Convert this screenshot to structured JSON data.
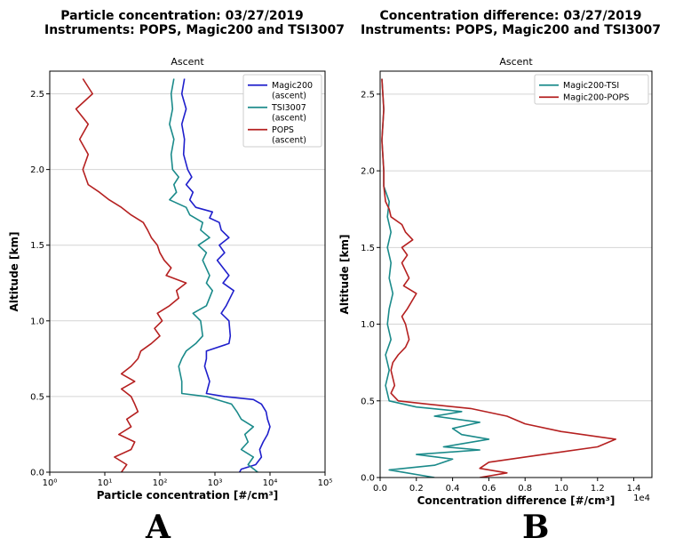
{
  "figure": {
    "panel_letters": [
      "A",
      "B"
    ]
  },
  "chart_data": [
    {
      "type": "line",
      "title_line1": "Particle concentration: 03/27/2019",
      "title_line2": "Instruments: POPS, Magic200 and TSI3007",
      "subtitle": "Ascent",
      "xlabel": "Particle concentration [#/cm³]",
      "ylabel": "Altitude [km]",
      "xscale": "log",
      "xlim": [
        1,
        100000
      ],
      "ylim": [
        0,
        2.65
      ],
      "xticks": [
        "10⁰",
        "10¹",
        "10²",
        "10³",
        "10⁴",
        "10⁵"
      ],
      "yticks": [
        "0.0",
        "0.5",
        "1.0",
        "1.5",
        "2.0",
        "2.5"
      ],
      "grid": "horizontal",
      "legend": "top-right",
      "series": [
        {
          "name": "Magic200\n(ascent)",
          "color": "#1f1fcc",
          "points": [
            [
              2800,
              0.0
            ],
            [
              3000,
              0.02
            ],
            [
              5500,
              0.05
            ],
            [
              7000,
              0.1
            ],
            [
              6500,
              0.15
            ],
            [
              7500,
              0.2
            ],
            [
              9000,
              0.25
            ],
            [
              10000,
              0.3
            ],
            [
              9000,
              0.35
            ],
            [
              8500,
              0.4
            ],
            [
              7000,
              0.45
            ],
            [
              5000,
              0.48
            ],
            [
              1500,
              0.5
            ],
            [
              700,
              0.52
            ],
            [
              800,
              0.6
            ],
            [
              650,
              0.7
            ],
            [
              700,
              0.75
            ],
            [
              700,
              0.8
            ],
            [
              1800,
              0.85
            ],
            [
              1900,
              0.9
            ],
            [
              1800,
              1.0
            ],
            [
              1300,
              1.05
            ],
            [
              1600,
              1.1
            ],
            [
              2200,
              1.2
            ],
            [
              1400,
              1.25
            ],
            [
              1800,
              1.3
            ],
            [
              1100,
              1.4
            ],
            [
              1500,
              1.45
            ],
            [
              1200,
              1.5
            ],
            [
              1800,
              1.55
            ],
            [
              1300,
              1.6
            ],
            [
              1200,
              1.65
            ],
            [
              800,
              1.68
            ],
            [
              900,
              1.72
            ],
            [
              450,
              1.75
            ],
            [
              350,
              1.8
            ],
            [
              400,
              1.85
            ],
            [
              300,
              1.9
            ],
            [
              380,
              1.95
            ],
            [
              320,
              2.0
            ],
            [
              270,
              2.1
            ],
            [
              280,
              2.2
            ],
            [
              250,
              2.3
            ],
            [
              300,
              2.4
            ],
            [
              250,
              2.5
            ],
            [
              280,
              2.6
            ]
          ]
        },
        {
          "name": "TSI3007\n(ascent)",
          "color": "#1a8a8a",
          "points": [
            [
              6000,
              0.0
            ],
            [
              4000,
              0.05
            ],
            [
              5000,
              0.1
            ],
            [
              3000,
              0.15
            ],
            [
              4000,
              0.2
            ],
            [
              3500,
              0.25
            ],
            [
              5000,
              0.3
            ],
            [
              3000,
              0.35
            ],
            [
              2500,
              0.4
            ],
            [
              2000,
              0.45
            ],
            [
              700,
              0.5
            ],
            [
              250,
              0.52
            ],
            [
              250,
              0.6
            ],
            [
              220,
              0.7
            ],
            [
              250,
              0.75
            ],
            [
              300,
              0.8
            ],
            [
              450,
              0.85
            ],
            [
              600,
              0.9
            ],
            [
              550,
              1.0
            ],
            [
              400,
              1.05
            ],
            [
              700,
              1.1
            ],
            [
              900,
              1.2
            ],
            [
              700,
              1.25
            ],
            [
              800,
              1.3
            ],
            [
              600,
              1.4
            ],
            [
              700,
              1.45
            ],
            [
              500,
              1.5
            ],
            [
              800,
              1.55
            ],
            [
              550,
              1.6
            ],
            [
              600,
              1.65
            ],
            [
              350,
              1.7
            ],
            [
              300,
              1.75
            ],
            [
              150,
              1.8
            ],
            [
              200,
              1.85
            ],
            [
              180,
              1.9
            ],
            [
              220,
              1.95
            ],
            [
              170,
              2.0
            ],
            [
              160,
              2.1
            ],
            [
              180,
              2.2
            ],
            [
              150,
              2.3
            ],
            [
              170,
              2.4
            ],
            [
              160,
              2.5
            ],
            [
              180,
              2.6
            ]
          ]
        },
        {
          "name": "POPS\n(ascent)",
          "color": "#b52020",
          "points": [
            [
              20,
              0.0
            ],
            [
              25,
              0.05
            ],
            [
              15,
              0.1
            ],
            [
              30,
              0.15
            ],
            [
              35,
              0.2
            ],
            [
              18,
              0.25
            ],
            [
              30,
              0.3
            ],
            [
              25,
              0.35
            ],
            [
              40,
              0.4
            ],
            [
              35,
              0.45
            ],
            [
              30,
              0.5
            ],
            [
              20,
              0.55
            ],
            [
              35,
              0.6
            ],
            [
              20,
              0.65
            ],
            [
              30,
              0.7
            ],
            [
              40,
              0.75
            ],
            [
              45,
              0.8
            ],
            [
              70,
              0.85
            ],
            [
              100,
              0.9
            ],
            [
              80,
              0.95
            ],
            [
              110,
              1.0
            ],
            [
              90,
              1.05
            ],
            [
              150,
              1.1
            ],
            [
              220,
              1.15
            ],
            [
              200,
              1.2
            ],
            [
              300,
              1.25
            ],
            [
              130,
              1.3
            ],
            [
              160,
              1.35
            ],
            [
              120,
              1.4
            ],
            [
              100,
              1.45
            ],
            [
              90,
              1.5
            ],
            [
              70,
              1.55
            ],
            [
              60,
              1.6
            ],
            [
              50,
              1.65
            ],
            [
              30,
              1.7
            ],
            [
              20,
              1.75
            ],
            [
              12,
              1.8
            ],
            [
              8,
              1.85
            ],
            [
              5,
              1.9
            ],
            [
              4,
              2.0
            ],
            [
              5,
              2.1
            ],
            [
              3.5,
              2.2
            ],
            [
              5,
              2.3
            ],
            [
              3,
              2.4
            ],
            [
              6,
              2.5
            ],
            [
              4,
              2.6
            ]
          ]
        }
      ]
    },
    {
      "type": "line",
      "title_line1": "Concentration difference: 03/27/2019",
      "title_line2": "Instruments: POPS, Magic200 and TSI3007",
      "subtitle": "Ascent",
      "xlabel": "Concentration difference [#/cm³]",
      "ylabel": "Altitude [km]",
      "offset_label": "1e4",
      "xlim": [
        0,
        1.5
      ],
      "ylim": [
        0,
        2.65
      ],
      "xticks": [
        "0.0",
        "0.2",
        "0.4",
        "0.6",
        "0.8",
        "1.0",
        "1.2",
        "1.4"
      ],
      "yticks": [
        "0.0",
        "0.5",
        "1.0",
        "1.5",
        "2.0",
        "2.5"
      ],
      "grid": "horizontal",
      "legend": "top-right",
      "series": [
        {
          "name": "Magic200-TSI",
          "color": "#1a8a8a",
          "points": [
            [
              0.3,
              0.0
            ],
            [
              0.05,
              0.05
            ],
            [
              0.3,
              0.08
            ],
            [
              0.4,
              0.12
            ],
            [
              0.2,
              0.15
            ],
            [
              0.55,
              0.18
            ],
            [
              0.35,
              0.2
            ],
            [
              0.6,
              0.25
            ],
            [
              0.45,
              0.28
            ],
            [
              0.4,
              0.32
            ],
            [
              0.55,
              0.36
            ],
            [
              0.3,
              0.4
            ],
            [
              0.45,
              0.43
            ],
            [
              0.2,
              0.46
            ],
            [
              0.05,
              0.5
            ],
            [
              0.03,
              0.6
            ],
            [
              0.05,
              0.7
            ],
            [
              0.03,
              0.8
            ],
            [
              0.06,
              0.9
            ],
            [
              0.04,
              1.0
            ],
            [
              0.05,
              1.1
            ],
            [
              0.07,
              1.2
            ],
            [
              0.05,
              1.3
            ],
            [
              0.06,
              1.4
            ],
            [
              0.04,
              1.5
            ],
            [
              0.06,
              1.6
            ],
            [
              0.04,
              1.7
            ],
            [
              0.05,
              1.8
            ],
            [
              0.02,
              1.9
            ],
            [
              0.02,
              2.0
            ],
            [
              0.01,
              2.2
            ],
            [
              0.02,
              2.4
            ],
            [
              0.01,
              2.6
            ]
          ]
        },
        {
          "name": "Magic200-POPS",
          "color": "#b52020",
          "points": [
            [
              0.55,
              0.0
            ],
            [
              0.7,
              0.03
            ],
            [
              0.55,
              0.06
            ],
            [
              0.6,
              0.1
            ],
            [
              0.9,
              0.15
            ],
            [
              1.2,
              0.2
            ],
            [
              1.3,
              0.25
            ],
            [
              1.0,
              0.3
            ],
            [
              0.8,
              0.35
            ],
            [
              0.7,
              0.4
            ],
            [
              0.5,
              0.45
            ],
            [
              0.25,
              0.48
            ],
            [
              0.1,
              0.5
            ],
            [
              0.06,
              0.55
            ],
            [
              0.08,
              0.6
            ],
            [
              0.06,
              0.7
            ],
            [
              0.07,
              0.75
            ],
            [
              0.1,
              0.8
            ],
            [
              0.14,
              0.85
            ],
            [
              0.16,
              0.9
            ],
            [
              0.14,
              1.0
            ],
            [
              0.12,
              1.05
            ],
            [
              0.15,
              1.1
            ],
            [
              0.2,
              1.2
            ],
            [
              0.13,
              1.25
            ],
            [
              0.16,
              1.3
            ],
            [
              0.12,
              1.4
            ],
            [
              0.15,
              1.45
            ],
            [
              0.12,
              1.5
            ],
            [
              0.18,
              1.55
            ],
            [
              0.14,
              1.6
            ],
            [
              0.12,
              1.65
            ],
            [
              0.06,
              1.7
            ],
            [
              0.05,
              1.75
            ],
            [
              0.03,
              1.8
            ],
            [
              0.02,
              1.9
            ],
            [
              0.02,
              2.0
            ],
            [
              0.01,
              2.2
            ],
            [
              0.02,
              2.4
            ],
            [
              0.01,
              2.6
            ]
          ]
        }
      ]
    }
  ]
}
